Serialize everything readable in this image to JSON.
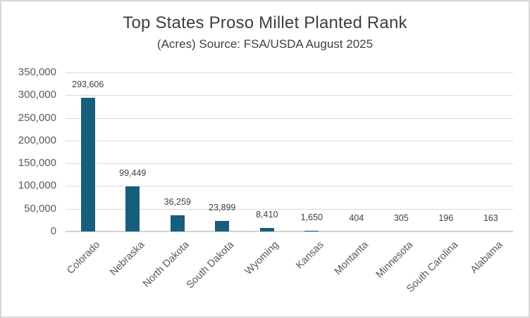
{
  "frame": {
    "background": "#ffffff",
    "border_color": "#d6d6d8"
  },
  "chart_data": {
    "type": "bar",
    "title": "Top States Proso Millet Planted Rank",
    "subtitle": "(Acres) Source: FSA/USDA August 2025",
    "categories": [
      "Colorado",
      "Nebraska",
      "North Dakota",
      "South Dakota",
      "Wyoming",
      "Kansas",
      "Montanta",
      "Minnesota",
      "South Carolina",
      "Alabama"
    ],
    "values": [
      293606,
      99449,
      36259,
      23899,
      8410,
      1650,
      404,
      305,
      196,
      163
    ],
    "data_labels": [
      "293,606",
      "99,449",
      "36,259",
      "23,899",
      "8,410",
      "1,650",
      "404",
      "305",
      "196",
      "163"
    ],
    "xlabel": "",
    "ylabel": "",
    "ylim": [
      0,
      350000
    ],
    "y_tick_step": 50000,
    "y_tick_labels": [
      "0",
      "50,000",
      "100,000",
      "150,000",
      "200,000",
      "250,000",
      "300,000",
      "350,000"
    ],
    "grid": true,
    "legend_position": "none",
    "bar_color": "#175e7d",
    "gridline_color": "#d9d9d9",
    "axis_text_color": "#595959",
    "data_label_color": "#404040",
    "title_color": "#3f3f3f"
  }
}
